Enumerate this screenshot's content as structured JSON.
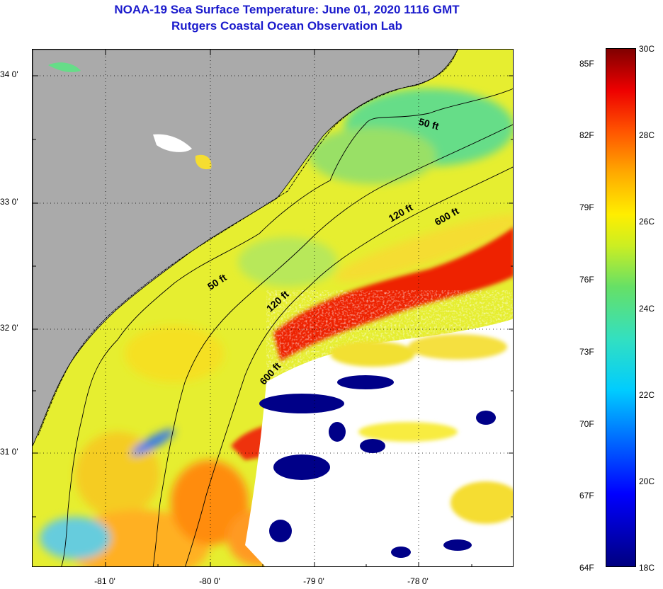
{
  "header": {
    "title_line1": "NOAA-19 Sea Surface Temperature:  June 01, 2020 1116 GMT",
    "title_line2": "Rutgers Coastal Ocean Observation Lab"
  },
  "map": {
    "latitude_labels": [
      "34 0'",
      "33 0'",
      "32 0'",
      "31 0'"
    ],
    "longitude_labels": [
      "-81 0'",
      "-80 0'",
      "-79 0'",
      "-78 0'"
    ],
    "contour_labels": {
      "c50_north": "50 ft",
      "c50_south": "50 ft",
      "c120_north": "120 ft",
      "c120_south": "120 ft",
      "c600_north": "600 ft",
      "c600_south": "600 ft"
    },
    "colors": {
      "land": "#aaaaaa",
      "cloud_mask": "#ffffff",
      "coastline": "#000000",
      "gridline": "#000000"
    }
  },
  "colorbar": {
    "fahrenheit_labels": [
      "85F",
      "82F",
      "79F",
      "76F",
      "73F",
      "70F",
      "67F",
      "64F"
    ],
    "celsius_labels": [
      "30C",
      "28C",
      "26C",
      "24C",
      "22C",
      "20C",
      "18C"
    ],
    "min_f": 64,
    "max_f": 86,
    "min_c": 18,
    "max_c": 30,
    "colormap": [
      "#000080",
      "#0000ff",
      "#0066ff",
      "#00ccff",
      "#33e0c0",
      "#66e066",
      "#ccee22",
      "#ffee00",
      "#ffaa00",
      "#ff5500",
      "#ee0000",
      "#800000"
    ]
  }
}
